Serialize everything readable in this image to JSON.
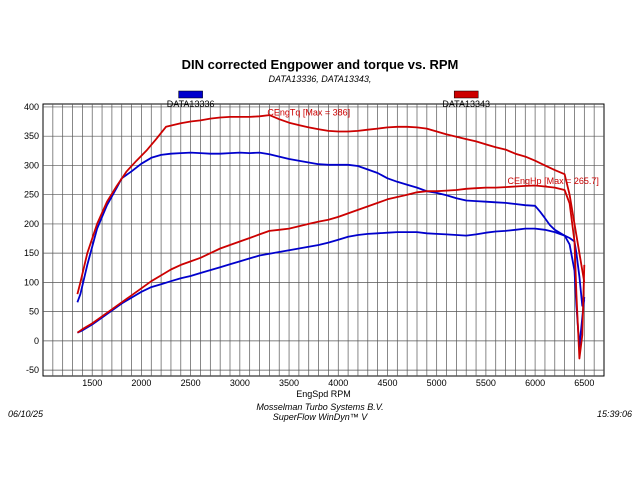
{
  "chart_data": {
    "type": "line",
    "title": "DIN corrected Engpower and torque vs. RPM",
    "subtitle": "DATA13336, DATA13343,",
    "xlabel": "EngSpd  RPM",
    "ylabel": "",
    "xlim": [
      1000,
      6700
    ],
    "ylim": [
      -60,
      405
    ],
    "x_ticks": [
      1500,
      2000,
      2500,
      3000,
      3500,
      4000,
      4500,
      5000,
      5500,
      6000,
      6500
    ],
    "y_ticks": [
      -50,
      0,
      50,
      100,
      150,
      200,
      250,
      300,
      350,
      400
    ],
    "grid": true,
    "legend": [
      {
        "name": "DATA13336",
        "color": "#0000cc"
      },
      {
        "name": "DATA13343",
        "color": "#cc0000"
      }
    ],
    "annotations": [
      {
        "text": "CEngTq [Max = 386]",
        "x": 3280,
        "y": 385
      },
      {
        "text": "CEngHp [Max = 265.7]",
        "x": 5720,
        "y": 268
      }
    ],
    "series": [
      {
        "name": "DATA13336",
        "metric": "CEngTq",
        "color": "#0000cc",
        "x": [
          1350,
          1380,
          1450,
          1550,
          1650,
          1750,
          1800,
          1900,
          2000,
          2100,
          2200,
          2300,
          2400,
          2500,
          2600,
          2700,
          2800,
          2900,
          3000,
          3100,
          3200,
          3300,
          3400,
          3500,
          3600,
          3700,
          3800,
          3900,
          4000,
          4100,
          4200,
          4300,
          4400,
          4500,
          4600,
          4700,
          4800,
          4900,
          5000,
          5100,
          5200,
          5300,
          5400,
          5500,
          5600,
          5700,
          5800,
          5900,
          6000,
          6050,
          6100,
          6150,
          6200,
          6300,
          6350,
          6400,
          6420,
          6450,
          6480,
          6500
        ],
        "y": [
          66,
          80,
          130,
          192,
          232,
          262,
          278,
          290,
          303,
          313,
          318,
          320,
          321,
          322,
          321,
          320,
          320,
          321,
          322,
          321,
          322,
          319,
          315,
          311,
          308,
          305,
          302,
          301,
          301,
          301,
          299,
          293,
          287,
          278,
          272,
          267,
          262,
          256,
          253,
          249,
          244,
          240,
          239,
          238,
          237,
          236,
          234,
          232,
          231,
          221,
          210,
          198,
          190,
          180,
          176,
          170,
          150,
          110,
          60,
          70
        ]
      },
      {
        "name": "DATA13343",
        "metric": "CEngTq",
        "color": "#cc0000",
        "x": [
          1350,
          1380,
          1450,
          1550,
          1650,
          1750,
          1850,
          1950,
          2050,
          2150,
          2250,
          2400,
          2500,
          2600,
          2700,
          2800,
          2900,
          3000,
          3100,
          3200,
          3300,
          3400,
          3500,
          3600,
          3700,
          3800,
          3900,
          4000,
          4100,
          4200,
          4300,
          4400,
          4500,
          4600,
          4700,
          4800,
          4900,
          5000,
          5100,
          5200,
          5300,
          5400,
          5500,
          5600,
          5700,
          5800,
          5900,
          6000,
          6100,
          6200,
          6300,
          6350,
          6400,
          6450,
          6500
        ],
        "y": [
          80,
          100,
          150,
          200,
          238,
          265,
          290,
          308,
          325,
          345,
          366,
          372,
          375,
          377,
          380,
          382,
          383,
          383,
          383,
          384,
          386,
          379,
          373,
          369,
          365,
          362,
          359,
          358,
          358,
          359,
          361,
          363,
          365,
          366,
          366,
          365,
          363,
          358,
          353,
          349,
          345,
          341,
          336,
          331,
          327,
          320,
          315,
          308,
          300,
          292,
          285,
          250,
          200,
          150,
          100
        ]
      },
      {
        "name": "DATA13336",
        "metric": "CEngHp",
        "color": "#0000cc",
        "x": [
          1350,
          1400,
          1500,
          1600,
          1700,
          1800,
          1900,
          2000,
          2100,
          2200,
          2300,
          2400,
          2500,
          2600,
          2700,
          2800,
          2900,
          3000,
          3100,
          3200,
          3300,
          3400,
          3500,
          3600,
          3700,
          3800,
          3900,
          4000,
          4100,
          4200,
          4300,
          4400,
          4500,
          4600,
          4700,
          4800,
          4900,
          5000,
          5100,
          5200,
          5300,
          5400,
          5500,
          5600,
          5700,
          5800,
          5900,
          6000,
          6100,
          6200,
          6300,
          6350,
          6400,
          6420,
          6450,
          6480,
          6500
        ],
        "y": [
          14,
          18,
          28,
          40,
          52,
          64,
          74,
          84,
          92,
          97,
          102,
          107,
          111,
          116,
          121,
          126,
          131,
          136,
          141,
          146,
          149,
          152,
          155,
          158,
          161,
          164,
          168,
          173,
          178,
          181,
          183,
          184,
          185,
          186,
          186,
          186,
          184,
          183,
          182,
          181,
          180,
          182,
          185,
          187,
          188,
          190,
          192,
          192,
          190,
          186,
          180,
          165,
          120,
          60,
          -10,
          40,
          75
        ]
      },
      {
        "name": "DATA13343",
        "metric": "CEngHp",
        "color": "#cc0000",
        "x": [
          1350,
          1400,
          1500,
          1600,
          1700,
          1800,
          1900,
          2000,
          2100,
          2200,
          2300,
          2400,
          2500,
          2600,
          2700,
          2800,
          2900,
          3000,
          3100,
          3200,
          3300,
          3400,
          3500,
          3600,
          3700,
          3800,
          3900,
          4000,
          4100,
          4200,
          4300,
          4400,
          4500,
          4600,
          4700,
          4800,
          4900,
          5000,
          5100,
          5200,
          5300,
          5400,
          5500,
          5600,
          5700,
          5800,
          5900,
          6000,
          6100,
          6200,
          6300,
          6350,
          6400,
          6420,
          6450,
          6480,
          6500
        ],
        "y": [
          14,
          20,
          30,
          42,
          54,
          66,
          78,
          90,
          102,
          112,
          122,
          130,
          136,
          142,
          150,
          158,
          164,
          170,
          176,
          182,
          188,
          190,
          192,
          196,
          200,
          204,
          207,
          212,
          218,
          224,
          230,
          236,
          242,
          246,
          250,
          254,
          256,
          256,
          257,
          258,
          260,
          261,
          262,
          262,
          263,
          264,
          265,
          265.7,
          264,
          262,
          258,
          235,
          170,
          80,
          -30,
          10,
          130
        ]
      }
    ]
  },
  "footer": {
    "date": "06/10/25",
    "company": "Mosselman Turbo Systems B.V.",
    "software": "SuperFlow WinDyn™ V",
    "time": "15:39:06"
  }
}
